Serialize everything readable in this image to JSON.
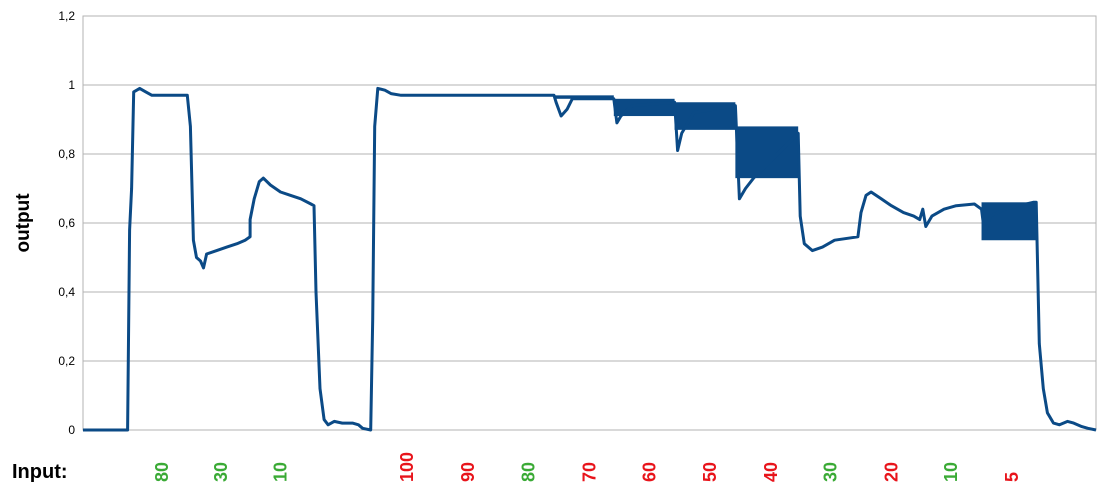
{
  "chart_data": {
    "type": "line",
    "title": "",
    "xlabel": "",
    "ylabel": "output",
    "ylim": [
      0,
      1.2
    ],
    "yticks": [
      "0",
      "0,2",
      "0,4",
      "0,6",
      "0,8",
      "1",
      "1,2"
    ],
    "grid": true,
    "legend": "none",
    "x_axis_ticks_shown": false,
    "xlim": [
      0,
      100
    ],
    "line_color": "#0b4a86",
    "series": [
      {
        "values": [
          [
            0,
            0
          ],
          [
            4.4,
            0
          ],
          [
            4.6,
            0.58
          ],
          [
            4.8,
            0.7
          ],
          [
            5.0,
            0.98
          ],
          [
            5.6,
            0.99
          ],
          [
            6.2,
            0.98
          ],
          [
            6.8,
            0.97
          ],
          [
            10.3,
            0.97
          ],
          [
            10.6,
            0.88
          ],
          [
            10.9,
            0.55
          ],
          [
            11.2,
            0.5
          ],
          [
            11.6,
            0.49
          ],
          [
            11.9,
            0.47
          ],
          [
            12.2,
            0.51
          ],
          [
            13.2,
            0.52
          ],
          [
            14.2,
            0.53
          ],
          [
            15.2,
            0.54
          ],
          [
            16.0,
            0.55
          ],
          [
            16.5,
            0.56
          ],
          [
            16.5,
            0.61
          ],
          [
            16.9,
            0.67
          ],
          [
            17.4,
            0.72
          ],
          [
            17.8,
            0.73
          ],
          [
            18.5,
            0.71
          ],
          [
            19.5,
            0.69
          ],
          [
            20.5,
            0.68
          ],
          [
            21.5,
            0.67
          ],
          [
            22.5,
            0.655
          ],
          [
            22.8,
            0.65
          ],
          [
            23.0,
            0.4
          ],
          [
            23.4,
            0.12
          ],
          [
            23.8,
            0.03
          ],
          [
            24.2,
            0.015
          ],
          [
            24.8,
            0.025
          ],
          [
            25.6,
            0.02
          ],
          [
            26.6,
            0.02
          ],
          [
            27.2,
            0.015
          ],
          [
            27.6,
            0.005
          ],
          [
            28.4,
            0
          ],
          [
            28.6,
            0.32
          ],
          [
            28.8,
            0.88
          ],
          [
            29.1,
            0.99
          ],
          [
            29.8,
            0.985
          ],
          [
            30.4,
            0.975
          ],
          [
            31.4,
            0.97
          ],
          [
            46.5,
            0.97
          ],
          [
            46.7,
            0.95
          ],
          [
            47.2,
            0.91
          ],
          [
            47.8,
            0.93
          ],
          [
            48.3,
            0.96
          ],
          [
            52.4,
            0.96
          ],
          [
            52.7,
            0.89
          ],
          [
            53.1,
            0.91
          ],
          [
            54.2,
            0.94
          ],
          [
            58.4,
            0.95
          ],
          [
            58.7,
            0.81
          ],
          [
            59.1,
            0.86
          ],
          [
            60.3,
            0.92
          ],
          [
            64.4,
            0.94
          ],
          [
            64.8,
            0.67
          ],
          [
            65.4,
            0.7
          ],
          [
            66.2,
            0.73
          ],
          [
            70.6,
            0.86
          ],
          [
            70.8,
            0.62
          ],
          [
            71.2,
            0.54
          ],
          [
            72.0,
            0.52
          ],
          [
            73.0,
            0.53
          ],
          [
            74.2,
            0.55
          ],
          [
            76.5,
            0.56
          ],
          [
            76.8,
            0.63
          ],
          [
            77.3,
            0.68
          ],
          [
            77.8,
            0.69
          ],
          [
            78.8,
            0.67
          ],
          [
            79.8,
            0.65
          ],
          [
            81.0,
            0.63
          ],
          [
            82.0,
            0.62
          ],
          [
            82.6,
            0.61
          ],
          [
            82.9,
            0.64
          ],
          [
            83.2,
            0.59
          ],
          [
            83.8,
            0.62
          ],
          [
            85.0,
            0.64
          ],
          [
            86.2,
            0.65
          ],
          [
            88.0,
            0.655
          ],
          [
            88.7,
            0.64
          ],
          [
            89.0,
            0.57
          ],
          [
            89.6,
            0.62
          ],
          [
            91.0,
            0.64
          ],
          [
            93.8,
            0.66
          ],
          [
            94.1,
            0.66
          ],
          [
            94.4,
            0.25
          ],
          [
            94.8,
            0.12
          ],
          [
            95.2,
            0.05
          ],
          [
            95.8,
            0.02
          ],
          [
            96.4,
            0.015
          ],
          [
            97.2,
            0.025
          ],
          [
            97.8,
            0.02
          ],
          [
            98.6,
            0.01
          ],
          [
            99.2,
            0.005
          ],
          [
            100,
            0
          ]
        ],
        "oscillation_bands": [
          {
            "x": [
              46.5,
              52.4
            ],
            "low": 0.96,
            "high": 0.97
          },
          {
            "x": [
              52.4,
              58.4
            ],
            "low": 0.91,
            "high": 0.96
          },
          {
            "x": [
              58.4,
              64.4
            ],
            "low": 0.87,
            "high": 0.95
          },
          {
            "x": [
              64.4,
              70.6
            ],
            "low": 0.73,
            "high": 0.88
          },
          {
            "x": [
              88.7,
              94.1
            ],
            "low": 0.55,
            "high": 0.66
          }
        ]
      }
    ],
    "input_row": {
      "label": "Input:",
      "values": [
        {
          "text": "80",
          "color": "#3aaa35",
          "x": 7.8
        },
        {
          "text": "30",
          "color": "#3aaa35",
          "x": 13.6
        },
        {
          "text": "10",
          "color": "#3aaa35",
          "x": 19.5
        },
        {
          "text": "100",
          "color": "#e8141b",
          "x": 32.0
        },
        {
          "text": "90",
          "color": "#e8141b",
          "x": 38.0
        },
        {
          "text": "80",
          "color": "#3aaa35",
          "x": 44.0
        },
        {
          "text": "70",
          "color": "#e8141b",
          "x": 50.0
        },
        {
          "text": "60",
          "color": "#e8141b",
          "x": 55.9
        },
        {
          "text": "50",
          "color": "#e8141b",
          "x": 61.9
        },
        {
          "text": "40",
          "color": "#e8141b",
          "x": 67.9
        },
        {
          "text": "30",
          "color": "#3aaa35",
          "x": 73.8
        },
        {
          "text": "20",
          "color": "#e8141b",
          "x": 79.8
        },
        {
          "text": "10",
          "color": "#3aaa35",
          "x": 85.7
        },
        {
          "text": "5",
          "color": "#e8141b",
          "x": 91.7
        }
      ]
    }
  }
}
